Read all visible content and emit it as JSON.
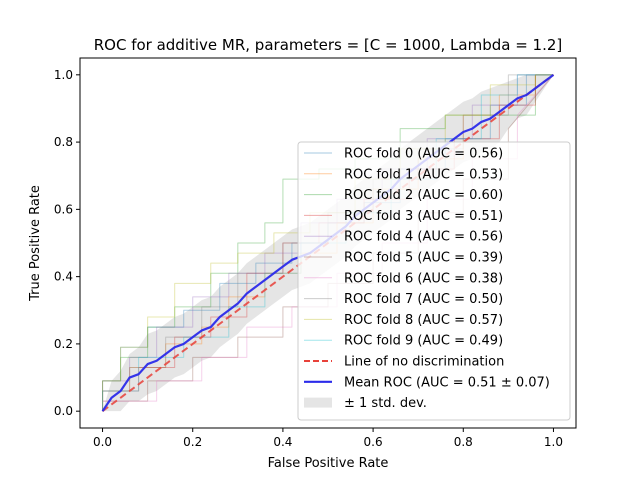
{
  "chart_data": {
    "type": "line",
    "title": "ROC for additive MR, parameters = [C = 1000, Lambda = 1.2]",
    "xlabel": "False Positive Rate",
    "ylabel": "True Positive Rate",
    "xlim": [
      -0.05,
      1.05
    ],
    "ylim": [
      -0.05,
      1.05
    ],
    "xticks": [
      "0.0",
      "0.2",
      "0.4",
      "0.6",
      "0.8",
      "1.0"
    ],
    "yticks": [
      "0.0",
      "0.2",
      "0.4",
      "0.6",
      "0.8",
      "1.0"
    ],
    "grid": false,
    "legend_position": "lower right",
    "series": [
      {
        "name": "ROC fold 0 (AUC = 0.56)",
        "color": "#1f77b4",
        "x": [
          0,
          0,
          0.04,
          0.04,
          0.1,
          0.1,
          0.18,
          0.18,
          0.26,
          0.26,
          0.34,
          0.34,
          0.42,
          0.42,
          0.5,
          0.5,
          0.58,
          0.58,
          0.66,
          0.66,
          0.76,
          0.76,
          0.86,
          0.86,
          0.94,
          0.94,
          1
        ],
        "y": [
          0,
          0.09,
          0.09,
          0.19,
          0.19,
          0.25,
          0.25,
          0.3,
          0.3,
          0.38,
          0.38,
          0.44,
          0.44,
          0.5,
          0.5,
          0.56,
          0.56,
          0.62,
          0.62,
          0.72,
          0.72,
          0.81,
          0.81,
          0.91,
          0.91,
          1,
          1
        ]
      },
      {
        "name": "ROC fold 1 (AUC = 0.53)",
        "color": "#ff7f0e",
        "x": [
          0,
          0,
          0.06,
          0.06,
          0.14,
          0.14,
          0.22,
          0.22,
          0.28,
          0.28,
          0.36,
          0.36,
          0.44,
          0.44,
          0.52,
          0.52,
          0.6,
          0.6,
          0.7,
          0.7,
          0.8,
          0.8,
          0.88,
          0.88,
          0.96,
          0.96,
          1
        ],
        "y": [
          0,
          0.06,
          0.06,
          0.13,
          0.13,
          0.2,
          0.2,
          0.25,
          0.25,
          0.34,
          0.34,
          0.41,
          0.41,
          0.47,
          0.47,
          0.56,
          0.56,
          0.66,
          0.66,
          0.75,
          0.75,
          0.88,
          0.88,
          0.94,
          0.94,
          1,
          1
        ]
      },
      {
        "name": "ROC fold 2 (AUC = 0.60)",
        "color": "#2ca02c",
        "x": [
          0,
          0,
          0.04,
          0.04,
          0.1,
          0.1,
          0.16,
          0.16,
          0.24,
          0.24,
          0.3,
          0.3,
          0.36,
          0.36,
          0.4,
          0.4,
          0.48,
          0.48,
          0.56,
          0.56,
          0.66,
          0.66,
          0.76,
          0.76,
          0.86,
          0.86,
          0.96,
          0.96,
          1
        ],
        "y": [
          0,
          0.09,
          0.09,
          0.16,
          0.16,
          0.25,
          0.25,
          0.31,
          0.31,
          0.41,
          0.41,
          0.5,
          0.5,
          0.56,
          0.56,
          0.69,
          0.69,
          0.72,
          0.72,
          0.75,
          0.75,
          0.84,
          0.84,
          0.88,
          0.88,
          0.88,
          0.88,
          1,
          1
        ]
      },
      {
        "name": "ROC fold 3 (AUC = 0.51)",
        "color": "#d62728",
        "x": [
          0,
          0,
          0.08,
          0.08,
          0.16,
          0.16,
          0.24,
          0.24,
          0.32,
          0.32,
          0.4,
          0.4,
          0.48,
          0.48,
          0.58,
          0.58,
          0.68,
          0.68,
          0.78,
          0.78,
          0.88,
          0.88,
          0.96,
          0.96,
          1
        ],
        "y": [
          0,
          0.06,
          0.06,
          0.13,
          0.13,
          0.22,
          0.22,
          0.28,
          0.28,
          0.41,
          0.41,
          0.5,
          0.5,
          0.56,
          0.56,
          0.63,
          0.63,
          0.72,
          0.72,
          0.81,
          0.81,
          0.91,
          0.91,
          1,
          1
        ]
      },
      {
        "name": "ROC fold 4 (AUC = 0.56)",
        "color": "#9467bd",
        "x": [
          0,
          0,
          0.06,
          0.06,
          0.12,
          0.12,
          0.2,
          0.2,
          0.28,
          0.28,
          0.36,
          0.36,
          0.44,
          0.44,
          0.52,
          0.52,
          0.62,
          0.62,
          0.72,
          0.72,
          0.82,
          0.82,
          0.92,
          0.92,
          1
        ],
        "y": [
          0,
          0.09,
          0.09,
          0.16,
          0.16,
          0.25,
          0.25,
          0.34,
          0.34,
          0.41,
          0.41,
          0.47,
          0.47,
          0.56,
          0.56,
          0.63,
          0.63,
          0.72,
          0.72,
          0.81,
          0.81,
          0.91,
          0.91,
          1,
          1
        ]
      },
      {
        "name": "ROC fold 5 (AUC = 0.39)",
        "color": "#8c564b",
        "x": [
          0,
          0,
          0.1,
          0.1,
          0.2,
          0.2,
          0.3,
          0.3,
          0.4,
          0.4,
          0.5,
          0.5,
          0.6,
          0.6,
          0.7,
          0.7,
          0.8,
          0.8,
          0.9,
          0.9,
          1
        ],
        "y": [
          0,
          0.03,
          0.03,
          0.09,
          0.09,
          0.16,
          0.16,
          0.22,
          0.22,
          0.31,
          0.31,
          0.38,
          0.38,
          0.47,
          0.47,
          0.59,
          0.59,
          0.69,
          0.69,
          0.84,
          1
        ]
      },
      {
        "name": "ROC fold 6 (AUC = 0.38)",
        "color": "#e377c2",
        "x": [
          0,
          0,
          0.12,
          0.12,
          0.22,
          0.22,
          0.32,
          0.32,
          0.42,
          0.42,
          0.52,
          0.52,
          0.62,
          0.62,
          0.72,
          0.72,
          0.82,
          0.82,
          0.92,
          0.92,
          1
        ],
        "y": [
          0,
          0.03,
          0.03,
          0.09,
          0.09,
          0.16,
          0.16,
          0.25,
          0.25,
          0.31,
          0.31,
          0.41,
          0.41,
          0.5,
          0.5,
          0.63,
          0.63,
          0.75,
          0.75,
          0.88,
          1
        ]
      },
      {
        "name": "ROC fold 7 (AUC = 0.50)",
        "color": "#7f7f7f",
        "x": [
          0,
          0,
          0.06,
          0.06,
          0.14,
          0.14,
          0.22,
          0.22,
          0.3,
          0.3,
          0.4,
          0.4,
          0.5,
          0.5,
          0.6,
          0.6,
          0.7,
          0.7,
          0.8,
          0.8,
          0.9,
          0.9,
          1
        ],
        "y": [
          0,
          0.06,
          0.06,
          0.13,
          0.13,
          0.22,
          0.22,
          0.31,
          0.31,
          0.41,
          0.41,
          0.5,
          0.5,
          0.59,
          0.59,
          0.69,
          0.69,
          0.78,
          0.78,
          0.88,
          0.88,
          1,
          1
        ]
      },
      {
        "name": "ROC fold 8 (AUC = 0.57)",
        "color": "#bcbd22",
        "x": [
          0,
          0,
          0.04,
          0.04,
          0.1,
          0.1,
          0.16,
          0.16,
          0.24,
          0.24,
          0.3,
          0.3,
          0.38,
          0.38,
          0.46,
          0.46,
          0.56,
          0.56,
          0.66,
          0.66,
          0.76,
          0.76,
          0.86,
          0.86,
          0.96,
          0.96,
          1
        ],
        "y": [
          0,
          0.09,
          0.09,
          0.19,
          0.19,
          0.28,
          0.28,
          0.38,
          0.38,
          0.44,
          0.44,
          0.47,
          0.47,
          0.53,
          0.53,
          0.59,
          0.59,
          0.69,
          0.69,
          0.78,
          0.78,
          0.88,
          0.88,
          0.97,
          0.97,
          1,
          1
        ]
      },
      {
        "name": "ROC fold 9 (AUC = 0.49)",
        "color": "#17becf",
        "x": [
          0,
          0,
          0.08,
          0.08,
          0.18,
          0.18,
          0.28,
          0.28,
          0.36,
          0.36,
          0.44,
          0.44,
          0.54,
          0.54,
          0.64,
          0.64,
          0.74,
          0.74,
          0.84,
          0.84,
          0.92,
          0.92,
          1
        ],
        "y": [
          0,
          0.06,
          0.06,
          0.16,
          0.16,
          0.22,
          0.22,
          0.31,
          0.31,
          0.41,
          0.41,
          0.5,
          0.5,
          0.59,
          0.59,
          0.69,
          0.69,
          0.81,
          0.81,
          0.94,
          0.94,
          1,
          1
        ]
      },
      {
        "name": "Line of no discrimination",
        "color": "#e8413a",
        "dashed": true,
        "x": [
          0,
          1
        ],
        "y": [
          0,
          1
        ]
      },
      {
        "name": "Mean ROC (AUC = 0.51 ± 0.07)",
        "color": "#2b2bea",
        "x": [
          0,
          0.02,
          0.04,
          0.06,
          0.08,
          0.1,
          0.12,
          0.14,
          0.16,
          0.18,
          0.2,
          0.22,
          0.24,
          0.26,
          0.28,
          0.3,
          0.32,
          0.34,
          0.36,
          0.38,
          0.4,
          0.42,
          0.44,
          0.46,
          0.48,
          0.5,
          0.52,
          0.54,
          0.56,
          0.58,
          0.6,
          0.62,
          0.64,
          0.66,
          0.68,
          0.7,
          0.72,
          0.74,
          0.76,
          0.78,
          0.8,
          0.82,
          0.84,
          0.86,
          0.88,
          0.9,
          0.92,
          0.94,
          0.96,
          0.98,
          1
        ],
        "y": [
          0,
          0.04,
          0.06,
          0.1,
          0.11,
          0.14,
          0.15,
          0.17,
          0.19,
          0.2,
          0.22,
          0.24,
          0.25,
          0.28,
          0.3,
          0.32,
          0.35,
          0.37,
          0.39,
          0.41,
          0.43,
          0.45,
          0.46,
          0.47,
          0.49,
          0.51,
          0.53,
          0.55,
          0.58,
          0.6,
          0.62,
          0.64,
          0.66,
          0.69,
          0.71,
          0.73,
          0.75,
          0.77,
          0.79,
          0.81,
          0.83,
          0.84,
          0.86,
          0.87,
          0.89,
          0.91,
          0.93,
          0.94,
          0.96,
          0.98,
          1
        ]
      },
      {
        "name": "± 1 std. dev.",
        "color": "#a9a9a9",
        "band": true,
        "x": [
          0,
          0.02,
          0.04,
          0.06,
          0.08,
          0.1,
          0.12,
          0.14,
          0.16,
          0.18,
          0.2,
          0.22,
          0.24,
          0.26,
          0.28,
          0.3,
          0.32,
          0.34,
          0.36,
          0.38,
          0.4,
          0.42,
          0.44,
          0.46,
          0.48,
          0.5,
          0.52,
          0.54,
          0.56,
          0.58,
          0.6,
          0.62,
          0.64,
          0.66,
          0.68,
          0.7,
          0.72,
          0.74,
          0.76,
          0.78,
          0.8,
          0.82,
          0.84,
          0.86,
          0.88,
          0.9,
          0.92,
          0.94,
          0.96,
          0.98,
          1
        ],
        "upper": [
          0,
          0.09,
          0.12,
          0.17,
          0.19,
          0.23,
          0.24,
          0.26,
          0.28,
          0.29,
          0.31,
          0.33,
          0.34,
          0.37,
          0.39,
          0.41,
          0.44,
          0.46,
          0.48,
          0.5,
          0.52,
          0.54,
          0.55,
          0.56,
          0.58,
          0.6,
          0.62,
          0.64,
          0.67,
          0.69,
          0.71,
          0.73,
          0.75,
          0.78,
          0.8,
          0.82,
          0.84,
          0.86,
          0.88,
          0.9,
          0.92,
          0.93,
          0.95,
          0.96,
          0.97,
          0.98,
          0.99,
          1,
          1,
          1,
          1
        ],
        "lower": [
          0,
          0,
          0,
          0.03,
          0.03,
          0.05,
          0.06,
          0.08,
          0.1,
          0.11,
          0.13,
          0.15,
          0.16,
          0.19,
          0.21,
          0.23,
          0.26,
          0.28,
          0.3,
          0.32,
          0.34,
          0.36,
          0.37,
          0.38,
          0.4,
          0.42,
          0.44,
          0.46,
          0.49,
          0.51,
          0.53,
          0.55,
          0.57,
          0.6,
          0.62,
          0.64,
          0.66,
          0.68,
          0.7,
          0.72,
          0.74,
          0.75,
          0.77,
          0.78,
          0.8,
          0.84,
          0.87,
          0.88,
          0.92,
          0.96,
          1
        ]
      }
    ]
  }
}
